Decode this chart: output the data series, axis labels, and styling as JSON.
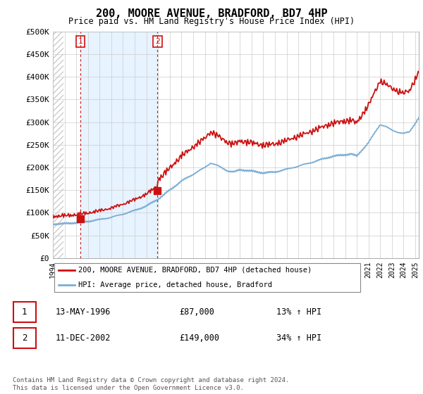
{
  "title": "200, MOORE AVENUE, BRADFORD, BD7 4HP",
  "subtitle": "Price paid vs. HM Land Registry's House Price Index (HPI)",
  "legend_line1": "200, MOORE AVENUE, BRADFORD, BD7 4HP (detached house)",
  "legend_line2": "HPI: Average price, detached house, Bradford",
  "transaction1_date": "13-MAY-1996",
  "transaction1_price": "£87,000",
  "transaction1_hpi": "13% ↑ HPI",
  "transaction2_date": "11-DEC-2002",
  "transaction2_price": "£149,000",
  "transaction2_hpi": "34% ↑ HPI",
  "footer": "Contains HM Land Registry data © Crown copyright and database right 2024.\nThis data is licensed under the Open Government Licence v3.0.",
  "ylim": [
    0,
    500000
  ],
  "yticks": [
    0,
    50000,
    100000,
    150000,
    200000,
    250000,
    300000,
    350000,
    400000,
    450000,
    500000
  ],
  "ytick_labels": [
    "£0",
    "£50K",
    "£100K",
    "£150K",
    "£200K",
    "£250K",
    "£300K",
    "£350K",
    "£400K",
    "£450K",
    "£500K"
  ],
  "hpi_color": "#7aadd4",
  "price_color": "#cc1111",
  "marker1_x": 1996.37,
  "marker1_y": 87000,
  "marker2_x": 2002.95,
  "marker2_y": 149000,
  "vline1_x": 1996.37,
  "vline2_x": 2002.95,
  "xmin": 1994.0,
  "xmax": 2025.3,
  "hatch_end": 1994.92,
  "shade_color": "#ddeeff",
  "hatch_color": "#bbbbbb",
  "grid_color": "#cccccc",
  "bg_color": "#ffffff"
}
